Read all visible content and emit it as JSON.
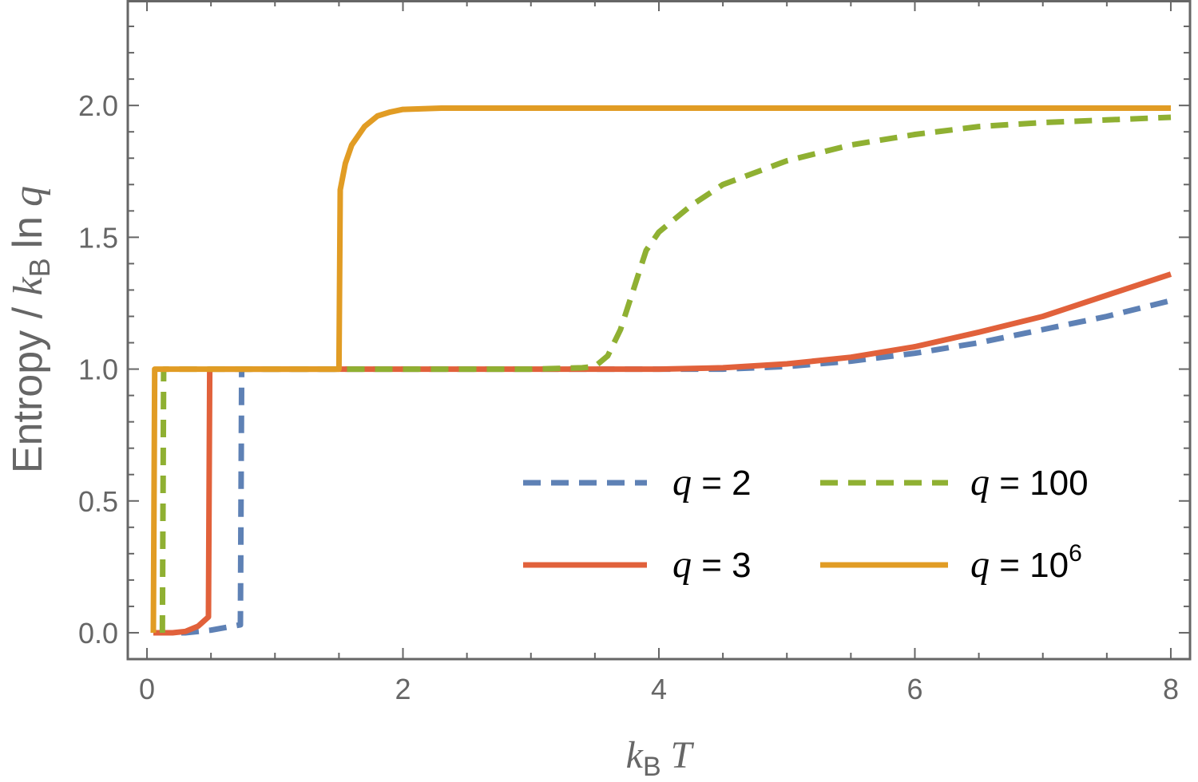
{
  "chart_data": {
    "type": "line",
    "title": "",
    "xlabel": {
      "var": "k",
      "sub": "B",
      "rest": "T"
    },
    "ylabel": {
      "prefix": "Entropy / ",
      "var": "k",
      "sub": "B",
      "mid": "ln",
      "var2": "q"
    },
    "xlim": [
      -0.15,
      8.15
    ],
    "ylim": [
      -0.1,
      2.4
    ],
    "x_ticks": [
      {
        "value": 0,
        "label": "0"
      },
      {
        "value": 2,
        "label": "2"
      },
      {
        "value": 4,
        "label": "4"
      },
      {
        "value": 6,
        "label": "6"
      },
      {
        "value": 8,
        "label": "8"
      }
    ],
    "y_ticks": [
      {
        "value": 0,
        "label": "0.0"
      },
      {
        "value": 0.5,
        "label": "0.5"
      },
      {
        "value": 1.0,
        "label": "1.0"
      },
      {
        "value": 1.5,
        "label": "1.5"
      },
      {
        "value": 2.0,
        "label": "2.0"
      }
    ],
    "grid": false,
    "legend": {
      "position": "bottom-right",
      "columns": 2
    },
    "series": [
      {
        "name": "q = 2",
        "legend_label": {
          "var": "q",
          "eq": " = 2",
          "sup": ""
        },
        "color": "#5E81B5",
        "dash": "dashed",
        "points": [
          [
            0.05,
            0.0
          ],
          [
            0.3,
            0.0
          ],
          [
            0.5,
            0.01
          ],
          [
            0.73,
            0.03
          ],
          [
            0.74,
            1.0
          ],
          [
            1.5,
            1.0
          ],
          [
            3.0,
            1.0
          ],
          [
            4.0,
            1.0
          ],
          [
            4.5,
            1.0
          ],
          [
            5.0,
            1.01
          ],
          [
            5.5,
            1.03
          ],
          [
            6.0,
            1.06
          ],
          [
            6.5,
            1.1
          ],
          [
            7.0,
            1.15
          ],
          [
            7.5,
            1.2
          ],
          [
            8.0,
            1.26
          ]
        ]
      },
      {
        "name": "q = 3",
        "legend_label": {
          "var": "q",
          "eq": " = 3",
          "sup": ""
        },
        "color": "#E1613B",
        "dash": "solid",
        "points": [
          [
            0.05,
            0.0
          ],
          [
            0.2,
            0.0
          ],
          [
            0.3,
            0.005
          ],
          [
            0.4,
            0.025
          ],
          [
            0.48,
            0.06
          ],
          [
            0.49,
            1.0
          ],
          [
            1.5,
            1.0
          ],
          [
            3.0,
            1.0
          ],
          [
            4.0,
            1.0
          ],
          [
            4.5,
            1.005
          ],
          [
            5.0,
            1.02
          ],
          [
            5.5,
            1.045
          ],
          [
            6.0,
            1.085
          ],
          [
            6.5,
            1.14
          ],
          [
            7.0,
            1.2
          ],
          [
            7.5,
            1.28
          ],
          [
            8.0,
            1.36
          ]
        ]
      },
      {
        "name": "q = 100",
        "legend_label": {
          "var": "q",
          "eq": " = 100",
          "sup": ""
        },
        "color": "#8FB032",
        "dash": "dashed",
        "points": [
          [
            0.12,
            0.0
          ],
          [
            0.13,
            1.0
          ],
          [
            1.5,
            1.0
          ],
          [
            3.0,
            1.0
          ],
          [
            3.4,
            1.005
          ],
          [
            3.5,
            1.01
          ],
          [
            3.6,
            1.05
          ],
          [
            3.7,
            1.15
          ],
          [
            3.8,
            1.3
          ],
          [
            3.9,
            1.45
          ],
          [
            4.0,
            1.52
          ],
          [
            4.25,
            1.62
          ],
          [
            4.5,
            1.7
          ],
          [
            5.0,
            1.79
          ],
          [
            5.5,
            1.85
          ],
          [
            6.0,
            1.89
          ],
          [
            6.5,
            1.92
          ],
          [
            7.0,
            1.935
          ],
          [
            7.5,
            1.945
          ],
          [
            8.0,
            1.955
          ]
        ]
      },
      {
        "name": "q = 10^6",
        "legend_label": {
          "var": "q",
          "eq": " = 10",
          "sup": "6"
        },
        "color": "#E19C24",
        "dash": "solid",
        "points": [
          [
            0.05,
            0.0
          ],
          [
            0.06,
            1.0
          ],
          [
            1.5,
            1.0
          ],
          [
            1.51,
            1.68
          ],
          [
            1.55,
            1.78
          ],
          [
            1.6,
            1.85
          ],
          [
            1.7,
            1.92
          ],
          [
            1.8,
            1.96
          ],
          [
            1.9,
            1.975
          ],
          [
            2.0,
            1.985
          ],
          [
            2.3,
            1.99
          ],
          [
            3.0,
            1.99
          ],
          [
            5.0,
            1.99
          ],
          [
            8.0,
            1.99
          ]
        ]
      }
    ]
  }
}
